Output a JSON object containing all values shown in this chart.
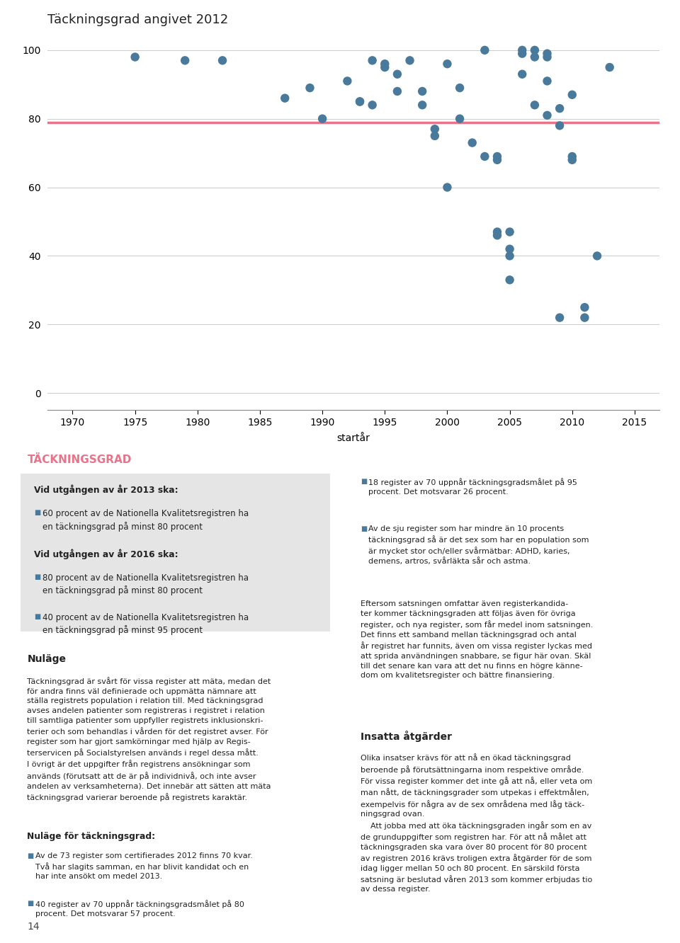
{
  "title": "Täckningsgrad angivet 2012",
  "xlabel": "startår",
  "xlim": [
    1968,
    2017
  ],
  "ylim": [
    -5,
    105
  ],
  "yticks": [
    0,
    20,
    40,
    60,
    80,
    100
  ],
  "xticks": [
    1970,
    1975,
    1980,
    1985,
    1990,
    1995,
    2000,
    2005,
    2010,
    2015
  ],
  "hline_y": 79,
  "hline_color": "#e8748a",
  "scatter_color": "#4a7a9b",
  "dot_size": 80,
  "scatter_x": [
    1975,
    1979,
    1982,
    1987,
    1989,
    1990,
    1992,
    1993,
    1993,
    1994,
    1994,
    1995,
    1995,
    1996,
    1996,
    1997,
    1998,
    1998,
    1999,
    1999,
    2000,
    2000,
    2001,
    2001,
    2002,
    2003,
    2003,
    2004,
    2004,
    2004,
    2004,
    2005,
    2005,
    2005,
    2005,
    2006,
    2006,
    2006,
    2007,
    2007,
    2007,
    2008,
    2008,
    2008,
    2008,
    2009,
    2009,
    2009,
    2010,
    2010,
    2010,
    2011,
    2011,
    2012,
    2013
  ],
  "scatter_y": [
    98,
    97,
    97,
    86,
    89,
    80,
    91,
    85,
    85,
    84,
    97,
    96,
    95,
    93,
    88,
    97,
    84,
    88,
    75,
    77,
    60,
    96,
    80,
    89,
    73,
    100,
    69,
    69,
    68,
    46,
    47,
    47,
    40,
    42,
    33,
    100,
    99,
    93,
    100,
    98,
    84,
    99,
    98,
    91,
    81,
    83,
    78,
    22,
    87,
    69,
    68,
    22,
    25,
    40,
    95
  ],
  "bg_color": "#ffffff",
  "chart_bg": "#ffffff",
  "grid_color": "#cccccc",
  "title_fontsize": 13,
  "tick_fontsize": 10,
  "xlabel_fontsize": 10,
  "section_title": "TÄCKNINGSGRAD",
  "section_title_color": "#e8748a",
  "box_bg": "#e5e5e5",
  "box_title1": "Vid utgången av år 2013 ska:",
  "box_bullet1": "60 procent av de Nationella Kvalitetsregistren ha\nen täckningsgrad på minst 80 procent",
  "box_title2": "Vid utgången av år 2016 ska:",
  "box_bullet2": "80 procent av de Nationella Kvalitetsregistren ha\nen täckningsgrad på minst 80 procent",
  "box_bullet3": "40 procent av de Nationella Kvalitetsregistren ha\nen täckningsgrad på minst 95 procent",
  "nulaege_title": "Nuläge",
  "nulaege_text": "Täckningsgrad är svårt för vissa register att mäta, medan det\nför andra finns väl definierade och uppmätta nämnare att\nställa registrets population i relation till. Med täckningsgrad\navses andelen patienter som registreras i registret i relation\ntill samtliga patienter som uppfyller registrets inklusionskri-\nterier och som behandlas i vården för det registret avser. För\nregister som har gjort samkörningar med hjälp av Regis-\nterservicen på Socialstyrelsen används i regel dessa mått.\nI övrigt är det uppgifter från registrens ansökningar som\nanvänds (förutsatt att de är på individnivå, och inte avser\nandelen av verksamheterna). Det innebär att sätten att mäta\ntäckningsgrad varierar beroende på registrets karaktär.",
  "nulaege_for_title": "Nuläge för täckningsgrad:",
  "nulaege_for_bullet1": "Av de 73 register som certifierades 2012 finns 70 kvar.\nTvå har slagits samman, en har blivit kandidat och en\nhar inte ansökt om medel 2013.",
  "nulaege_for_bullet2": "40 register av 70 uppnår täckningsgradsmålet på 80\nprocent. Det motsvarar 57 procent.",
  "nulaege_for_bullet3": "18 register av 70 uppnår täckningsgradsmålet på 95\nprocent. Det motsvarar 26 procent.",
  "nulaege_for_bullet4": "Av de sju register som har mindre än 10 procents\ntäckningsgrad så är det sex som har en population som\när mycket stor och/eller svårmätbar: ADHD, karies,\ndemens, artros, svårläkta sår och astma.",
  "right_para1": "Eftersom satsningen omfattar även registerkandida-\nter kommer täckningsgraden att följas även för övriga\nregister, och nya register, som får medel inom satsningen.\nDet finns ett samband mellan täckningsgrad och antal\når registret har funnits, även om vissa register lyckas med\natt sprida användningen snabbare, se figur här ovan. Skäl\ntill det senare kan vara att det nu finns en högre känne-\ndom om kvalitetsregister och bättre finansiering.",
  "insatta_title": "Insatta åtgärder",
  "insatta_text": "Olika insatser krävs för att nå en ökad täckningsgrad\nberoende på förutsättningarna inom respektive område.\nFör vissa register kommer det inte gå att nå, eller veta om\nman nått, de täckningsgrader som utpekas i effektmålen,\nexempelvis för några av de sex områdena med låg täck-\nningsgrad ovan.\n    Att jobba med att öka täckningsgraden ingår som en av\nde grunduppgifter som registren har. För att nå målet att\ntäckningsgraden ska vara över 80 procent för 80 procent\nav registren 2016 krävs troligen extra åtgärder för de som\nidag ligger mellan 50 och 80 procent. En särskild första\nsatsning är beslutad våren 2013 som kommer erbjudas tio\nav dessa register.",
  "page_number": "14",
  "bullet_color": "#4a7a9b"
}
